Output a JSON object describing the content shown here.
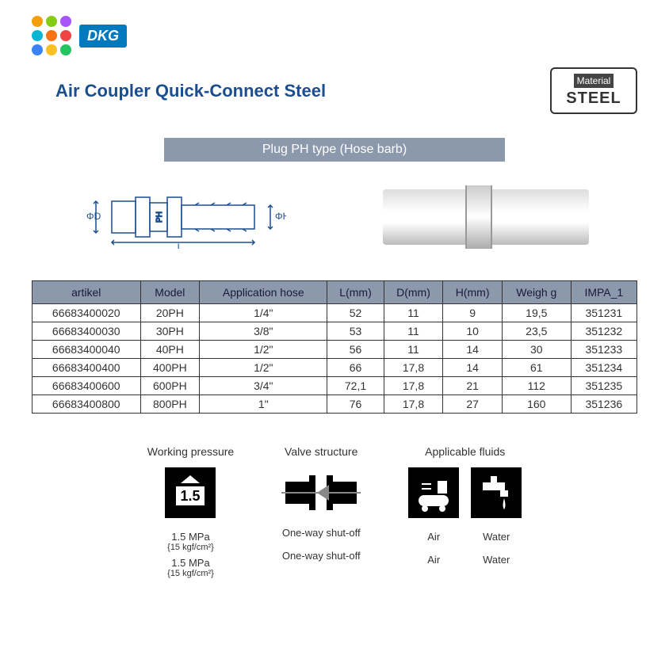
{
  "brand": "DKG",
  "dot_colors": [
    "#f59e0b",
    "#84cc16",
    "#a855f7",
    "#06b6d4",
    "#f97316",
    "#ef4444",
    "#3b82f6",
    "#fbbf24",
    "#22c55e"
  ],
  "title": "Air Coupler Quick-Connect Steel",
  "material_badge": {
    "top": "Material",
    "bottom": "STEEL"
  },
  "subheader": "Plug PH type (Hose barb)",
  "schematic_labels": {
    "diameter_d": "ΦD",
    "diameter_h": "ΦH",
    "length": "L",
    "ph": "PH"
  },
  "table": {
    "columns": [
      "artikel",
      "Model",
      "Application hose",
      "L(mm)",
      "D(mm)",
      "H(mm)",
      "Weigh g",
      "IMPA_1"
    ],
    "rows": [
      [
        "66683400020",
        "20PH",
        "1/4\"",
        "52",
        "11",
        "9",
        "19,5",
        "351231"
      ],
      [
        "66683400030",
        "30PH",
        "3/8\"",
        "53",
        "11",
        "10",
        "23,5",
        "351232"
      ],
      [
        "66683400040",
        "40PH",
        "1/2\"",
        "56",
        "11",
        "14",
        "30",
        "351233"
      ],
      [
        "66683400400",
        "400PH",
        "1/2\"",
        "66",
        "17,8",
        "14",
        "61",
        "351234"
      ],
      [
        "66683400600",
        "600PH",
        "3/4\"",
        "72,1",
        "17,8",
        "21",
        "112",
        "351235"
      ],
      [
        "66683400800",
        "800PH",
        "1\"",
        "76",
        "17,8",
        "27",
        "160",
        "351236"
      ]
    ]
  },
  "specs": {
    "pressure": {
      "label": "Working pressure",
      "icon_text": "1.5",
      "line1": "1.5 MPa",
      "line1_sub": "{15 kgf/cm²}",
      "line2": "1.5 MPa",
      "line2_sub": "{15 kgf/cm²}"
    },
    "valve": {
      "label": "Valve structure",
      "line1": "One-way shut-off",
      "line2": "One-way shut-off"
    },
    "fluids": {
      "label": "Applicable fluids",
      "items": [
        {
          "name": "Air",
          "name2": "Air"
        },
        {
          "name": "Water",
          "name2": "Water"
        }
      ]
    }
  },
  "colors": {
    "brand_blue": "#1b4e8e",
    "header_gray": "#8c98ac",
    "dkg_bg": "#0278bd"
  }
}
